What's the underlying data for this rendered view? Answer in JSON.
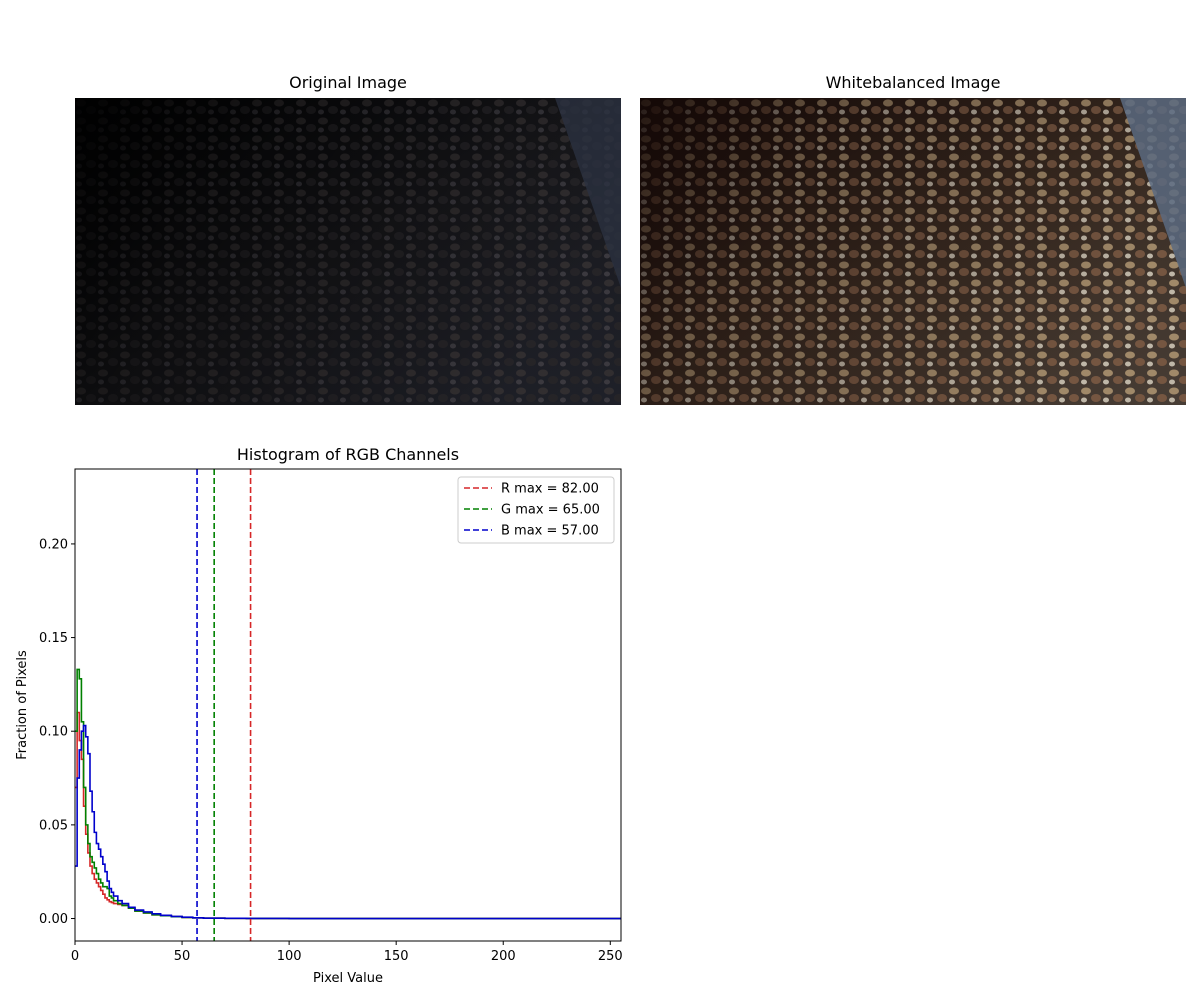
{
  "images": {
    "original": {
      "title": "Original Image"
    },
    "whitebalanced": {
      "title": "Whitebalanced Image"
    }
  },
  "chart_data": {
    "type": "line",
    "title": "Histogram of RGB Channels",
    "xlabel": "Pixel Value",
    "ylabel": "Fraction of Pixels",
    "xlim": [
      0,
      255
    ],
    "ylim": [
      -0.012,
      0.24
    ],
    "xticks": [
      0,
      50,
      100,
      150,
      200,
      250
    ],
    "yticks": [
      0.0,
      0.05,
      0.1,
      0.15,
      0.2
    ],
    "yticklabels": [
      "0.00",
      "0.05",
      "0.10",
      "0.15",
      "0.20"
    ],
    "grid": false,
    "legend_position": "top-right",
    "series": [
      {
        "name": "R",
        "color": "#d62728",
        "x": [
          0,
          1,
          2,
          3,
          4,
          5,
          6,
          7,
          8,
          9,
          10,
          11,
          12,
          13,
          14,
          15,
          16,
          17,
          18,
          20,
          22,
          25,
          28,
          32,
          36,
          40,
          45,
          50,
          55,
          60,
          70,
          80,
          100,
          150,
          200,
          255
        ],
        "values": [
          0.07,
          0.11,
          0.095,
          0.085,
          0.06,
          0.045,
          0.035,
          0.028,
          0.024,
          0.021,
          0.019,
          0.017,
          0.015,
          0.013,
          0.011,
          0.01,
          0.009,
          0.0085,
          0.008,
          0.0075,
          0.007,
          0.0055,
          0.004,
          0.003,
          0.002,
          0.0015,
          0.001,
          0.0006,
          0.0004,
          0.0002,
          0.0001,
          5e-05,
          0,
          0,
          0,
          0
        ]
      },
      {
        "name": "G",
        "color": "#008000",
        "x": [
          0,
          1,
          2,
          3,
          4,
          5,
          6,
          7,
          8,
          9,
          10,
          11,
          12,
          13,
          14,
          15,
          16,
          17,
          18,
          20,
          22,
          25,
          28,
          32,
          36,
          40,
          45,
          50,
          55,
          60,
          70,
          80,
          100,
          150,
          200,
          255
        ],
        "values": [
          0.1,
          0.133,
          0.128,
          0.105,
          0.07,
          0.05,
          0.04,
          0.033,
          0.03,
          0.027,
          0.024,
          0.021,
          0.019,
          0.017,
          0.017,
          0.016,
          0.012,
          0.011,
          0.0095,
          0.008,
          0.007,
          0.0055,
          0.004,
          0.003,
          0.002,
          0.0015,
          0.001,
          0.0006,
          0.0004,
          0.0002,
          0.0001,
          5e-05,
          0,
          0,
          0,
          0
        ]
      },
      {
        "name": "B",
        "color": "#0000cc",
        "x": [
          0,
          1,
          2,
          3,
          4,
          5,
          6,
          7,
          8,
          9,
          10,
          11,
          12,
          13,
          14,
          15,
          16,
          17,
          18,
          20,
          22,
          25,
          28,
          32,
          36,
          40,
          45,
          50,
          55,
          60,
          70,
          80,
          100,
          150,
          200,
          255
        ],
        "values": [
          0.028,
          0.075,
          0.09,
          0.1,
          0.103,
          0.097,
          0.088,
          0.068,
          0.057,
          0.046,
          0.04,
          0.037,
          0.033,
          0.029,
          0.025,
          0.02,
          0.016,
          0.014,
          0.012,
          0.0095,
          0.008,
          0.006,
          0.0045,
          0.0035,
          0.0025,
          0.0017,
          0.0011,
          0.0007,
          0.0004,
          0.0002,
          0.0001,
          5e-05,
          0,
          0,
          0,
          0
        ]
      }
    ],
    "vlines": [
      {
        "label": "R max = 82.00",
        "x": 82,
        "color": "#d62728"
      },
      {
        "label": "G max = 65.00",
        "x": 65,
        "color": "#008000"
      },
      {
        "label": "B max = 57.00",
        "x": 57,
        "color": "#0000cc"
      }
    ]
  }
}
